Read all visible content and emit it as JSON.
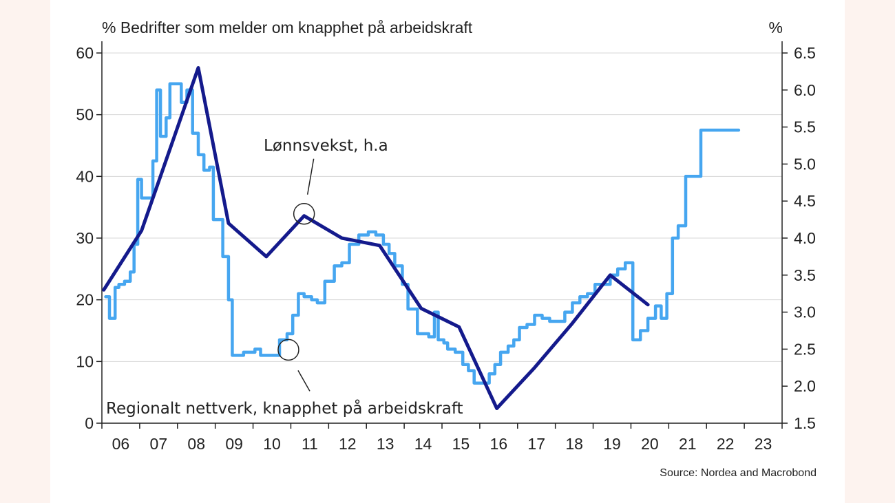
{
  "chart_data": {
    "type": "line",
    "title_left": "% Bedrifter som melder om knapphet på arbeidskraft",
    "title_right": "%",
    "source": "Source: Nordea and Macrobond",
    "x_tick_labels": [
      "06",
      "07",
      "08",
      "09",
      "10",
      "11",
      "12",
      "13",
      "14",
      "15",
      "16",
      "17",
      "18",
      "19",
      "20",
      "21",
      "22",
      "23"
    ],
    "xlim": [
      2005.95,
      2023.95
    ],
    "y_left": {
      "ticks": [
        "0",
        "10",
        "20",
        "30",
        "40",
        "50",
        "60"
      ],
      "ylim": [
        0,
        60
      ]
    },
    "y_right": {
      "ticks": [
        "1.5",
        "2.0",
        "2.5",
        "3.0",
        "3.5",
        "4.0",
        "4.5",
        "5.0",
        "5.5",
        "6.0",
        "6.5"
      ],
      "ylim": [
        1.5,
        6.5
      ]
    },
    "grid": true,
    "colors": {
      "dark": "#141a8c",
      "light": "#46a6f0",
      "grid": "#d7d7d7",
      "axis": "#222222"
    },
    "series": [
      {
        "name": "Lønnsvekst, h.a",
        "axis": "right",
        "color": "#141a8c",
        "x": [
          2006.0,
          2007.0,
          2008.5,
          2009.3,
          2010.3,
          2011.3,
          2012.3,
          2013.3,
          2014.4,
          2015.4,
          2016.4,
          2017.4,
          2018.4,
          2019.4,
          2020.4
        ],
        "y": [
          3.3,
          4.1,
          6.3,
          4.2,
          3.75,
          4.3,
          4.0,
          3.9,
          3.05,
          2.8,
          1.7,
          2.25,
          2.85,
          3.5,
          3.1
        ]
      },
      {
        "name": "Regionalt nettverk, knapphet på arbeidskraft",
        "axis": "left",
        "color": "#46a6f0",
        "x": [
          2006.05,
          2006.15,
          2006.3,
          2006.4,
          2006.55,
          2006.7,
          2006.8,
          2006.9,
          2007.0,
          2007.15,
          2007.3,
          2007.4,
          2007.5,
          2007.65,
          2007.75,
          2007.9,
          2008.05,
          2008.2,
          2008.35,
          2008.5,
          2008.65,
          2008.8,
          2008.9,
          2009.15,
          2009.3,
          2009.4,
          2009.55,
          2009.7,
          2009.85,
          2010.0,
          2010.15,
          2010.3,
          2010.5,
          2010.65,
          2010.85,
          2011.0,
          2011.15,
          2011.3,
          2011.5,
          2011.65,
          2011.85,
          2012.1,
          2012.3,
          2012.5,
          2012.75,
          2013.0,
          2013.2,
          2013.4,
          2013.55,
          2013.7,
          2013.9,
          2014.05,
          2014.3,
          2014.45,
          2014.6,
          2014.75,
          2014.85,
          2015.0,
          2015.1,
          2015.3,
          2015.5,
          2015.65,
          2015.8,
          2016.0,
          2016.2,
          2016.35,
          2016.5,
          2016.7,
          2016.85,
          2017.0,
          2017.2,
          2017.4,
          2017.6,
          2017.8,
          2018.0,
          2018.2,
          2018.4,
          2018.6,
          2018.8,
          2019.0,
          2019.2,
          2019.4,
          2019.6,
          2019.8,
          2020.0,
          2020.2,
          2020.4,
          2020.6,
          2020.75,
          2020.9,
          2021.05,
          2021.2,
          2021.4,
          2021.6,
          2021.8,
          2022.0,
          2022.15,
          2022.35,
          2022.5,
          2022.7,
          2022.8
        ],
        "y": [
          20.5,
          17.0,
          22,
          22.5,
          23,
          24.5,
          29,
          39.5,
          36.5,
          36.5,
          42.5,
          54,
          46.5,
          49.5,
          55,
          55,
          52,
          54,
          47,
          43.5,
          41,
          41.5,
          33,
          27,
          20,
          11,
          11,
          11.5,
          11.5,
          12,
          11,
          11,
          11,
          13.5,
          14.5,
          17.5,
          21,
          20.5,
          20,
          19.5,
          23,
          25.5,
          26,
          29,
          30.5,
          31,
          30.5,
          29,
          27.5,
          25.5,
          22.5,
          18.5,
          14.5,
          14.5,
          14,
          18,
          13.5,
          13,
          12,
          11.5,
          9.5,
          8.5,
          6.5,
          6.5,
          8,
          9.5,
          11.5,
          12.5,
          13.5,
          15.5,
          16,
          17.5,
          17,
          16.5,
          16.5,
          18,
          19.5,
          20.5,
          21,
          22.5,
          22.5,
          24,
          25,
          26,
          13.5,
          15,
          17,
          19,
          17,
          21,
          30,
          32,
          40,
          40,
          47.5,
          47.5,
          47.5,
          47.5,
          47.5,
          47.5,
          47.5
        ]
      }
    ],
    "annotations": [
      {
        "text": "Lønnsvekst, h.a",
        "series": 0
      },
      {
        "text": "Regionalt nettverk, knapphet på arbeidskraft",
        "series": 1
      }
    ]
  }
}
